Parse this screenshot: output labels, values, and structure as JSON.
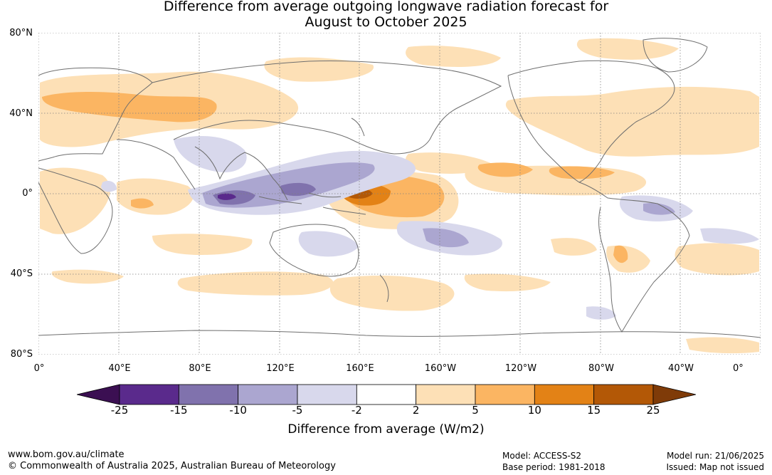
{
  "title": {
    "line1": "Difference from average outgoing longwave radiation forecast for",
    "line2": "August to October 2025"
  },
  "map": {
    "lat_labels": [
      "80°N",
      "40°N",
      "0°",
      "40°S",
      "80°S"
    ],
    "lon_labels": [
      "0°",
      "40°E",
      "80°E",
      "120°E",
      "160°E",
      "160°W",
      "120°W",
      "80°W",
      "40°W",
      "0°"
    ],
    "icon": "world-coastline-map"
  },
  "colorbar": {
    "ticks": [
      "-25",
      "-15",
      "-10",
      "-5",
      "-2",
      "2",
      "5",
      "10",
      "15",
      "25"
    ],
    "colors": [
      "#3b0f52",
      "#5a2a8c",
      "#8072ad",
      "#aba6d0",
      "#d8d8ec",
      "#ffffff",
      "#fde0b6",
      "#fbb562",
      "#e38216",
      "#b35806",
      "#7f3b08"
    ],
    "title": "Difference from average (W/m2)"
  },
  "footer": {
    "url": "www.bom.gov.au/climate",
    "copyright": "© Commonwealth of Australia 2025, Australian Bureau of Meteorology",
    "model": "Model: ACCESS-S2",
    "base_period": "Base period: 1981-2018",
    "model_run": "Model run: 21/06/2025",
    "issued": "Issued: Map not issued"
  }
}
